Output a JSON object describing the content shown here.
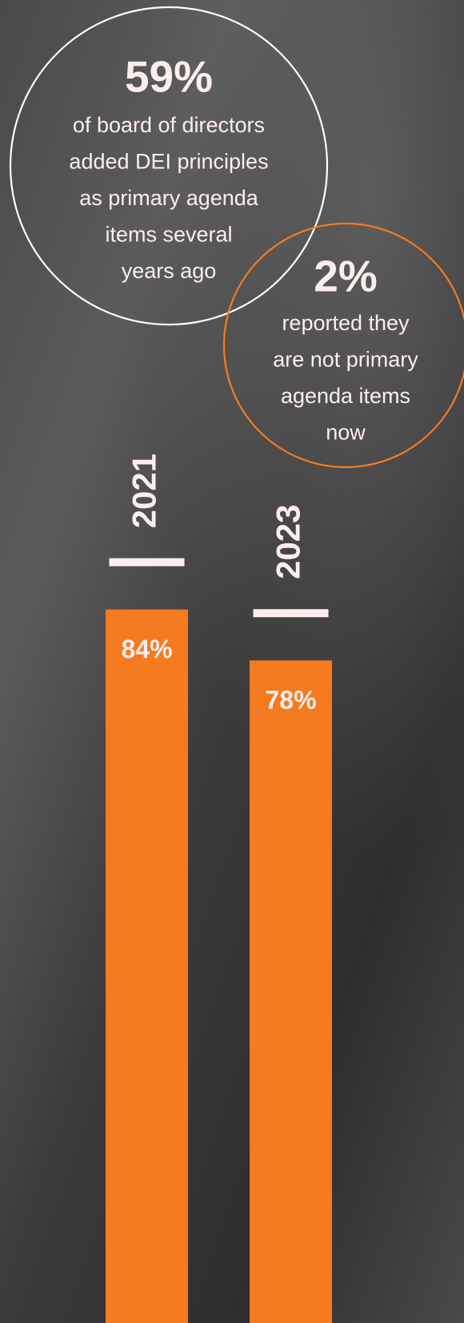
{
  "chart_data": {
    "type": "bar",
    "categories": [
      "2021",
      "2023"
    ],
    "values": [
      84,
      78
    ],
    "value_labels": [
      "84%",
      "78%"
    ],
    "color": "#f47b20",
    "ylim": [
      0,
      100
    ],
    "annotations": [
      {
        "headline": "59%",
        "lines": [
          "of board of directors",
          "added DEI principles",
          "as primary agenda",
          "items several",
          "years ago"
        ],
        "color": "#ffffff"
      },
      {
        "headline": "2%",
        "lines": [
          "reported they",
          "are not primary",
          "agenda items",
          "now"
        ],
        "color": "#f47b20"
      }
    ]
  }
}
